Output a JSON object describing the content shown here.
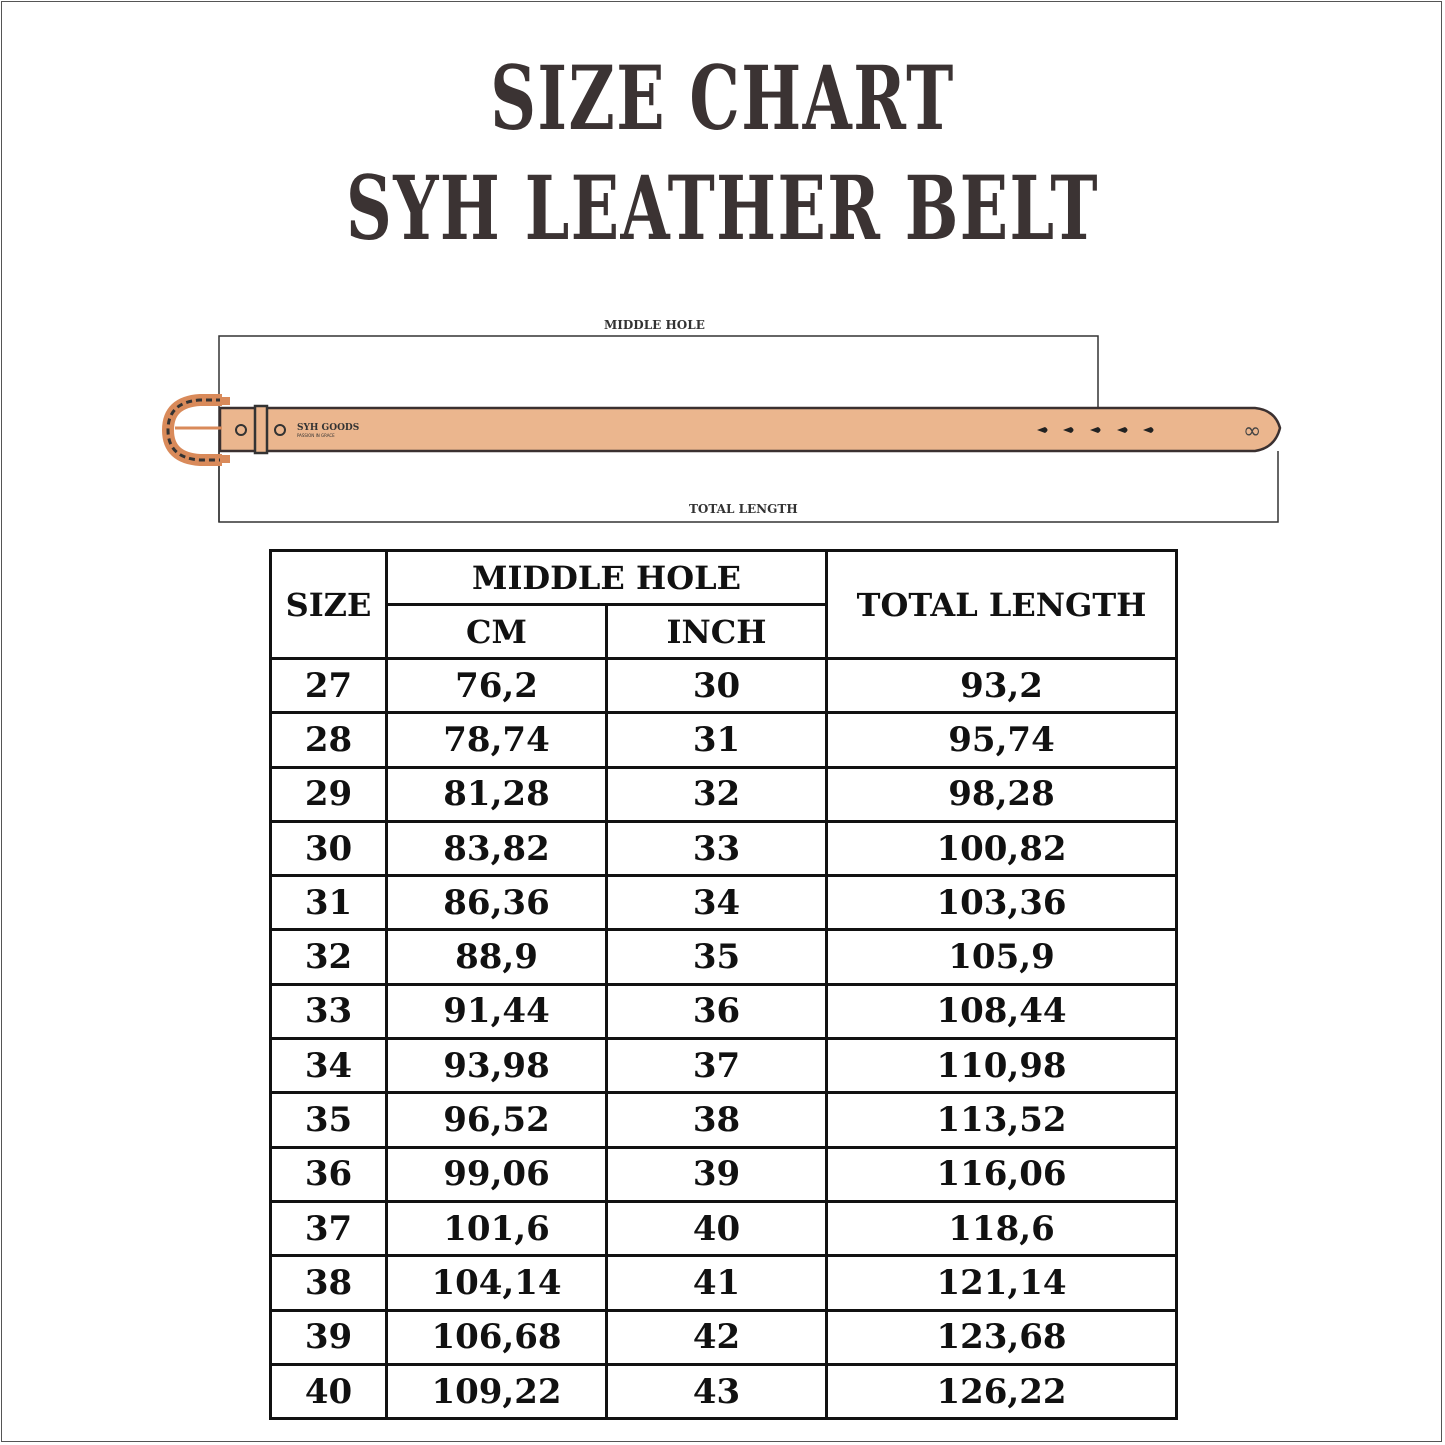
{
  "title": {
    "line1": "SIZE CHART",
    "line2": "SYH LEATHER BELT"
  },
  "diagram": {
    "middle_hole_label": "MIDDLE HOLE",
    "total_length_label": "TOTAL LENGTH",
    "logo_text": "SYH GOODS",
    "logo_tagline": "PASSION IN GRACE",
    "belt_color": "#ebb68e",
    "buckle_color": "#d98a5a"
  },
  "table": {
    "headers": {
      "size": "SIZE",
      "middle_hole": "MIDDLE HOLE",
      "cm": "CM",
      "inch": "INCH",
      "total_length": "TOTAL LENGTH"
    },
    "rows": [
      {
        "size": "27",
        "cm": "76,2",
        "inch": "30",
        "total": "93,2"
      },
      {
        "size": "28",
        "cm": "78,74",
        "inch": "31",
        "total": "95,74"
      },
      {
        "size": "29",
        "cm": "81,28",
        "inch": "32",
        "total": "98,28"
      },
      {
        "size": "30",
        "cm": "83,82",
        "inch": "33",
        "total": "100,82"
      },
      {
        "size": "31",
        "cm": "86,36",
        "inch": "34",
        "total": "103,36"
      },
      {
        "size": "32",
        "cm": "88,9",
        "inch": "35",
        "total": "105,9"
      },
      {
        "size": "33",
        "cm": "91,44",
        "inch": "36",
        "total": "108,44"
      },
      {
        "size": "34",
        "cm": "93,98",
        "inch": "37",
        "total": "110,98"
      },
      {
        "size": "35",
        "cm": "96,52",
        "inch": "38",
        "total": "113,52"
      },
      {
        "size": "36",
        "cm": "99,06",
        "inch": "39",
        "total": "116,06"
      },
      {
        "size": "37",
        "cm": "101,6",
        "inch": "40",
        "total": "118,6"
      },
      {
        "size": "38",
        "cm": "104,14",
        "inch": "41",
        "total": "121,14"
      },
      {
        "size": "39",
        "cm": "106,68",
        "inch": "42",
        "total": "123,68"
      },
      {
        "size": "40",
        "cm": "109,22",
        "inch": "43",
        "total": "126,22"
      }
    ]
  }
}
